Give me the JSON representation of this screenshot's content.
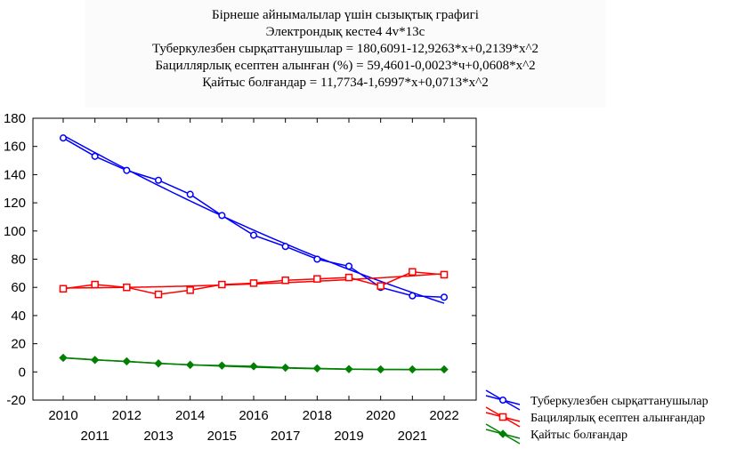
{
  "chart_data": {
    "type": "line",
    "title_lines": [
      "Бірнеше айнымалылар үшін сызықтық графигі",
      "Электрондық кесте4 4v*13c",
      "Туберкулезбен сырқаттанушылар = 180,6091-12,9263*x+0,2139*x^2",
      "Бациллярлық есептен алынған (%) = 59,4601-0,0023*ч+0,0608*x^2",
      "Қайтыс болғандар = 11,7734-1,6997*x+0,0713*x^2"
    ],
    "x": [
      2010,
      2011,
      2012,
      2013,
      2014,
      2015,
      2016,
      2017,
      2018,
      2019,
      2020,
      2021,
      2022
    ],
    "x_tick_labels_top": [
      "2010",
      "2012",
      "2014",
      "2016",
      "2018",
      "2020",
      "2022"
    ],
    "x_tick_labels_bottom": [
      "2011",
      "2013",
      "2015",
      "2017",
      "2019",
      "2021"
    ],
    "ylim": [
      -20,
      180
    ],
    "y_ticks": [
      "-20",
      "0",
      "20",
      "40",
      "60",
      "80",
      "100",
      "120",
      "140",
      "160",
      "180"
    ],
    "xlabel": "",
    "ylabel": "",
    "grid": false,
    "legend_position": "bottom-right",
    "series": [
      {
        "name": "Туберкулезбен сырқаттанушылар",
        "color": "#0000ff",
        "marker": "circle",
        "values": [
          166,
          153,
          143,
          136,
          126,
          111,
          97,
          89,
          80,
          75,
          60,
          54,
          53
        ],
        "fit": [
          180.6091,
          -12.9263,
          0.2139
        ]
      },
      {
        "name": "Бацилярлық есептен алынғандар",
        "color": "#ff0000",
        "marker": "square",
        "values": [
          59,
          62,
          60,
          55,
          58,
          62,
          63,
          65,
          66,
          67,
          61,
          71,
          69
        ],
        "fit": [
          59.4601,
          -0.0023,
          0.0608
        ]
      },
      {
        "name": "Қайтыс болғандар",
        "color": "#008000",
        "marker": "diamond",
        "values": [
          10,
          8.5,
          7.5,
          6,
          5,
          4.5,
          4,
          3,
          2.5,
          2,
          1.8,
          1.8,
          1.8
        ],
        "fit": [
          11.7734,
          -1.6997,
          0.0713
        ]
      }
    ]
  }
}
